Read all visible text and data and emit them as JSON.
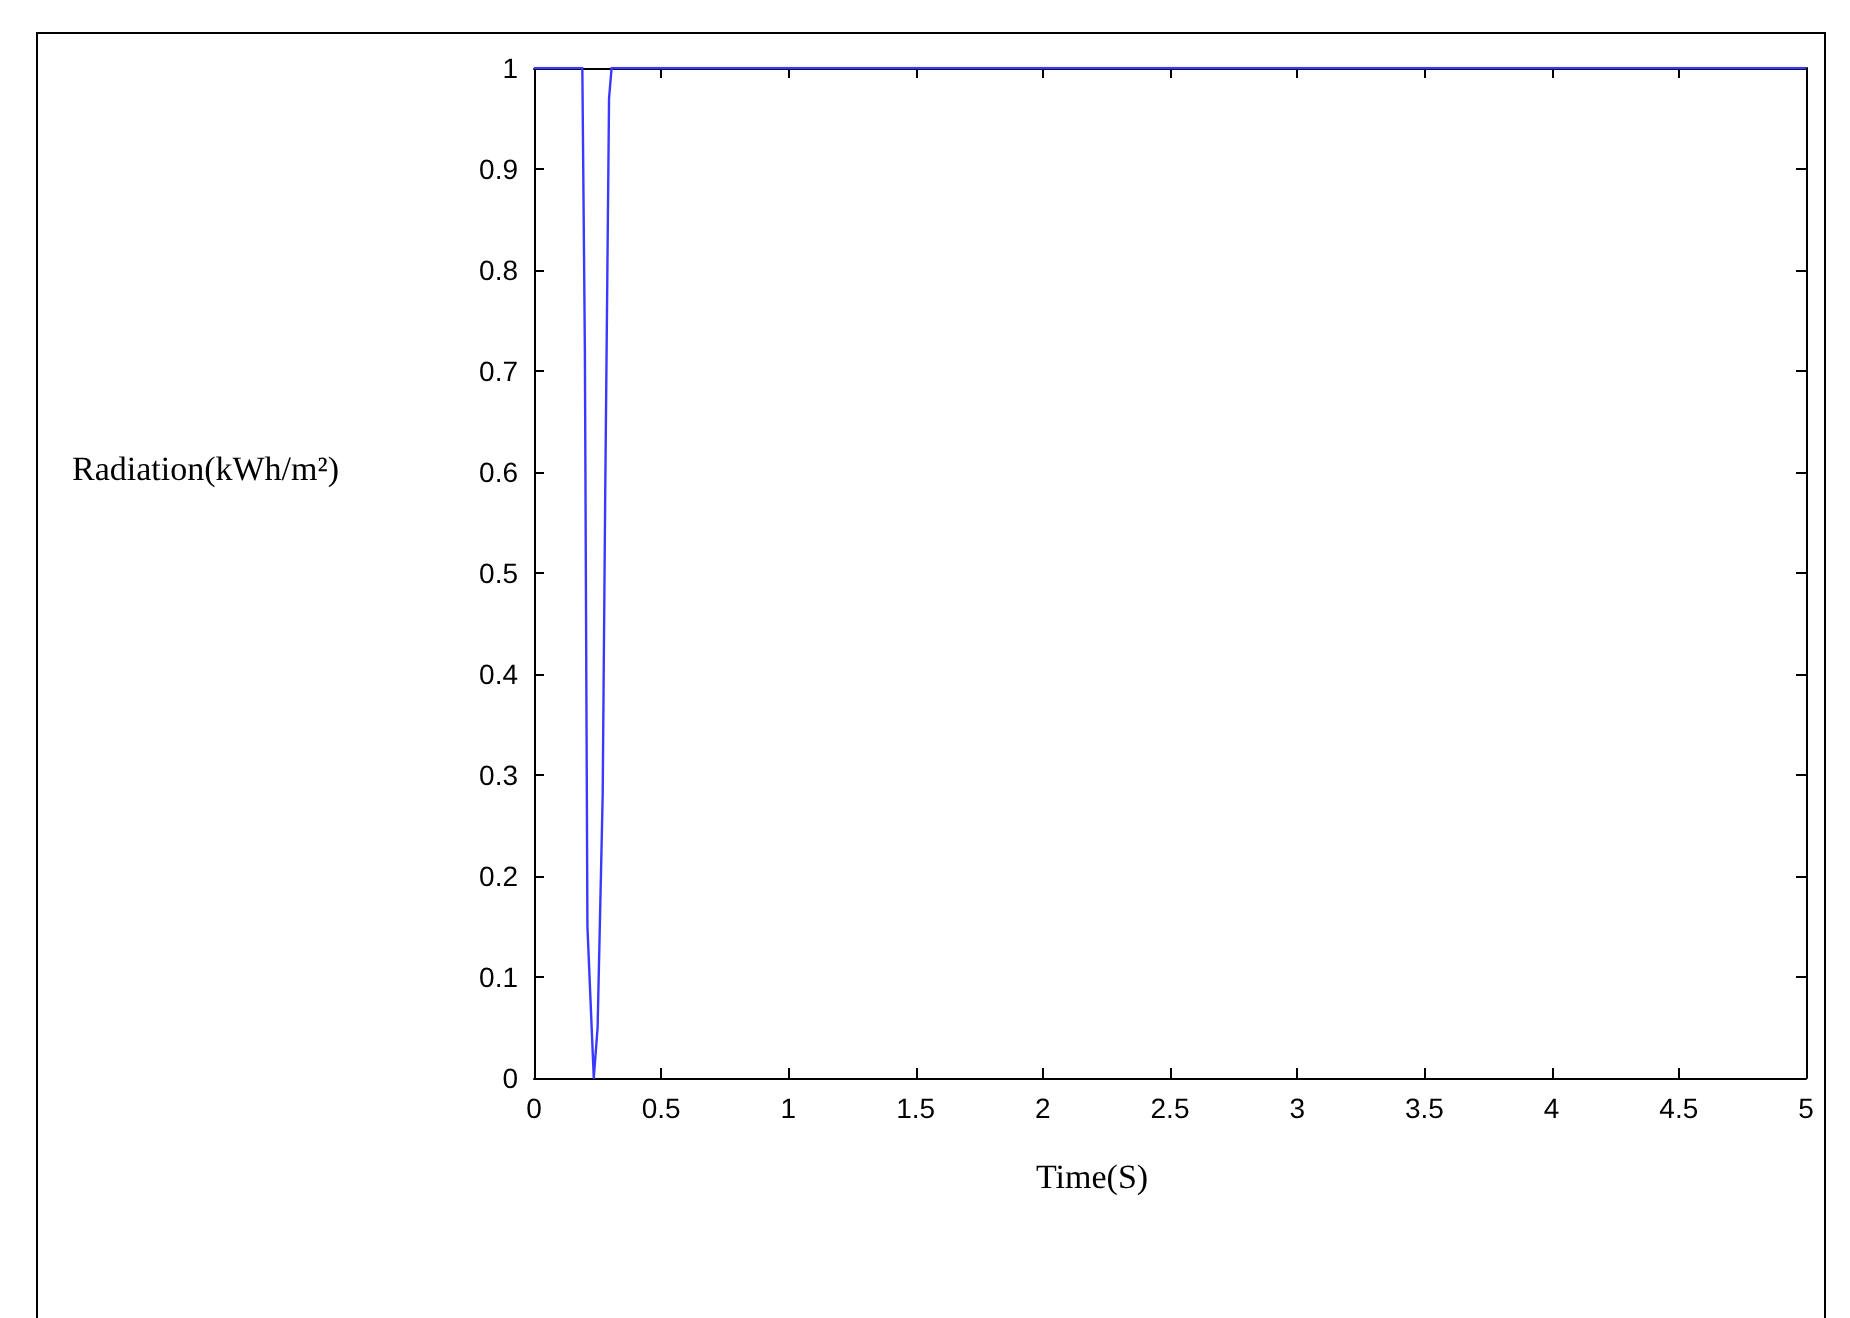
{
  "chart_data": {
    "type": "line",
    "xlabel": "Time(S)",
    "ylabel": "Radiation(kWh/m²)",
    "x": [
      0,
      0.19,
      0.2,
      0.21,
      0.235,
      0.25,
      0.27,
      0.28,
      0.295,
      0.305,
      1,
      2,
      3,
      4,
      5
    ],
    "series": [
      {
        "color": "#3a3aff",
        "values": [
          1,
          1,
          0.72,
          0.15,
          0,
          0.05,
          0.28,
          0.58,
          0.97,
          1,
          1,
          1,
          1,
          1,
          1
        ]
      }
    ],
    "xlim": [
      0,
      5
    ],
    "xticks": [
      0,
      0.5,
      1,
      1.5,
      2,
      2.5,
      3,
      3.5,
      4,
      4.5,
      5
    ],
    "ylim": [
      0,
      1
    ],
    "yticks": [
      0,
      0.1,
      0.2,
      0.3,
      0.4,
      0.5,
      0.6,
      0.7,
      0.8,
      0.9,
      1
    ],
    "marker": "none",
    "line_style": "solid"
  }
}
